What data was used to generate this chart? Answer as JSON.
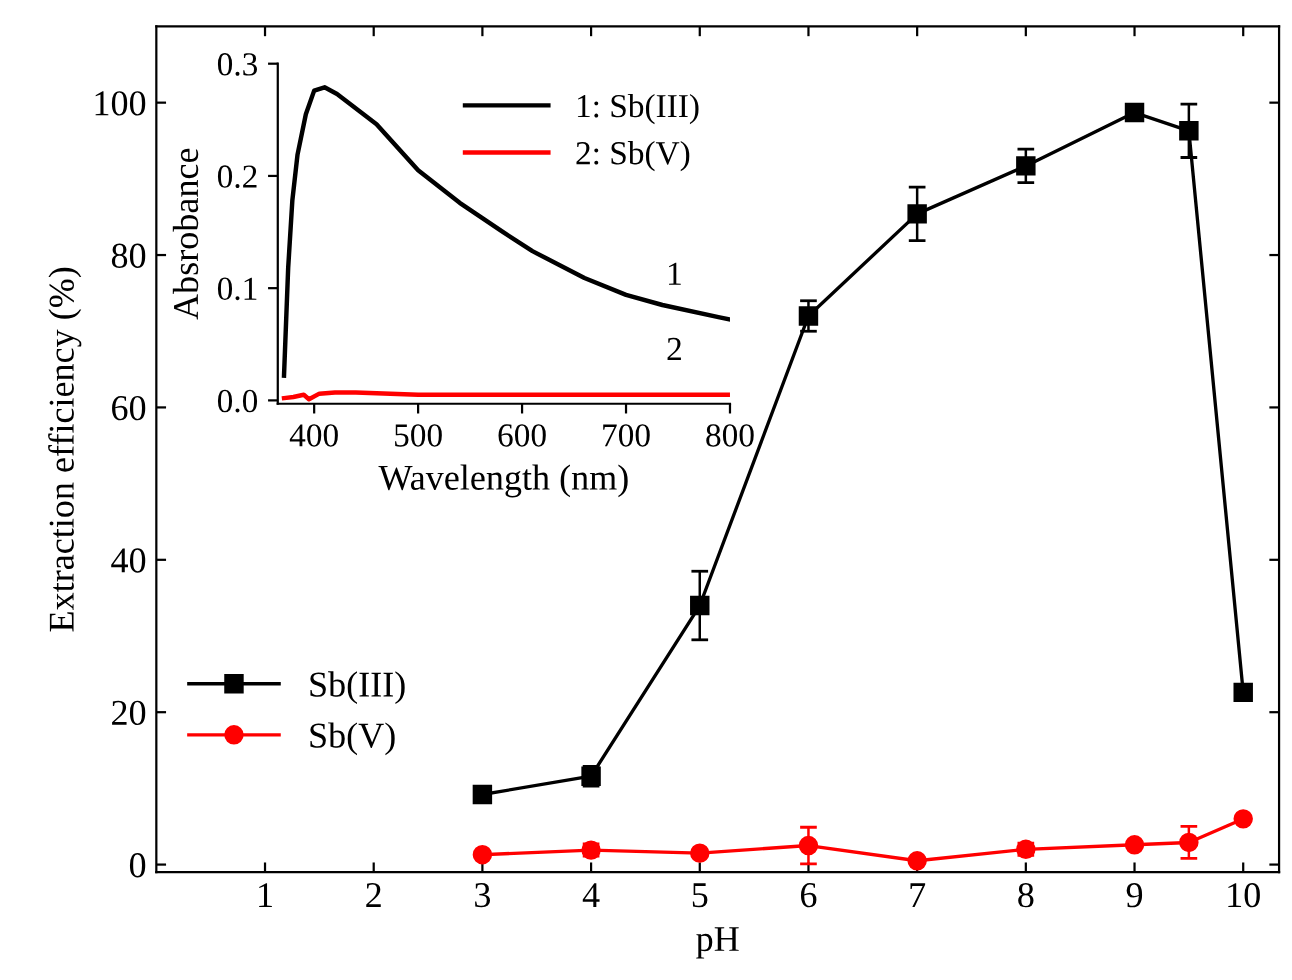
{
  "chart_data": [
    {
      "type": "line",
      "xlabel": "pH",
      "ylabel": "Extraction efficiency (%)",
      "xlim": [
        0,
        10.33
      ],
      "ylim": [
        -1,
        110
      ],
      "xticks": [
        1,
        2,
        3,
        4,
        5,
        6,
        7,
        8,
        9,
        10
      ],
      "yticks": [
        0,
        20,
        40,
        60,
        80,
        100
      ],
      "legend": "bottom left",
      "grid": false,
      "x": [
        3,
        4,
        5,
        6,
        7,
        8,
        9,
        9.5,
        10
      ],
      "series": [
        {
          "name": "Sb(III)",
          "color": "#000000",
          "marker": "square",
          "values": [
            9.2,
            11.6,
            34.0,
            72.0,
            85.4,
            91.7,
            98.7,
            96.3,
            22.6
          ],
          "errors": [
            0.5,
            1.3,
            4.5,
            2.0,
            3.5,
            2.2,
            0.7,
            3.5,
            0.8
          ]
        },
        {
          "name": "Sb(V)",
          "color": "#ff0000",
          "marker": "circle",
          "values": [
            1.3,
            1.9,
            1.5,
            2.5,
            0.5,
            2.0,
            2.6,
            2.9,
            6.0
          ],
          "errors": [
            null,
            0.8,
            null,
            2.4,
            null,
            0.8,
            null,
            2.1,
            null
          ]
        }
      ]
    },
    {
      "type": "line",
      "xlabel": "Wavelength (nm)",
      "ylabel": "Absrobance",
      "xlim": [
        365,
        800
      ],
      "ylim": [
        -0.003,
        0.3
      ],
      "xticks": [
        400,
        500,
        600,
        700,
        800
      ],
      "yticks": [
        {
          "value": 0,
          "label": "0.0"
        },
        {
          "value": 0.1,
          "label": "0.1"
        },
        {
          "value": 0.2,
          "label": "0.2"
        },
        {
          "value": 0.3,
          "label": "0.3"
        }
      ],
      "legend": "top right",
      "grid": false,
      "marker": "none",
      "annotations": [
        "1",
        "2"
      ],
      "series": [
        {
          "name": "1: Sb(III)",
          "color": "#000000",
          "x": [
            371,
            375,
            379,
            384,
            392,
            400,
            410,
            422,
            460,
            500,
            540,
            580,
            610,
            660,
            700,
            735,
            790,
            800
          ],
          "values": [
            0.022,
            0.118,
            0.178,
            0.219,
            0.255,
            0.276,
            0.279,
            0.273,
            0.246,
            0.205,
            0.176,
            0.151,
            0.133,
            0.109,
            0.094,
            0.085,
            0.074,
            0.072
          ]
        },
        {
          "name": "2: Sb(V)",
          "color": "#ff0000",
          "x": [
            371,
            380,
            390,
            395,
            405,
            420,
            440,
            500,
            600,
            700,
            800
          ],
          "values": [
            0.002,
            0.003,
            0.005,
            0.001,
            0.006,
            0.007,
            0.007,
            0.005,
            0.005,
            0.005,
            0.005
          ]
        }
      ]
    }
  ]
}
